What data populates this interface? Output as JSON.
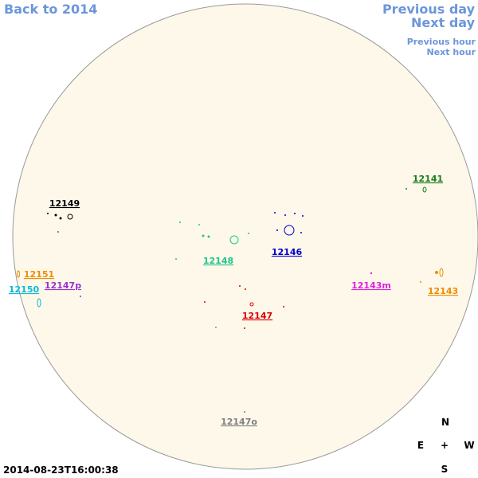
{
  "nav": {
    "back": "Back to 2014",
    "previous_day": "Previous day",
    "next_day": "Next day",
    "previous_hour": "Previous hour",
    "next_hour": "Next hour"
  },
  "regions": [
    {
      "label": "12141",
      "color": "#1a7f1a"
    },
    {
      "label": "12149",
      "color": "#000000"
    },
    {
      "label": "12146",
      "color": "#0000cc"
    },
    {
      "label": "12148",
      "color": "#22c48a"
    },
    {
      "label": "12151",
      "color": "#f08c00"
    },
    {
      "label": "12150",
      "color": "#10b8d8"
    },
    {
      "label": "12147p",
      "color": "#9933cc"
    },
    {
      "label": "12143m",
      "color": "#dd22dd"
    },
    {
      "label": "12143",
      "color": "#f08c00"
    },
    {
      "label": "12147",
      "color": "#dd0000"
    },
    {
      "label": "12147o",
      "color": "#808080"
    }
  ],
  "compass": {
    "north": "N",
    "east": "E",
    "center": "+",
    "west": "W",
    "south": "S"
  },
  "timestamp": "2014-08-23T16:00:38"
}
